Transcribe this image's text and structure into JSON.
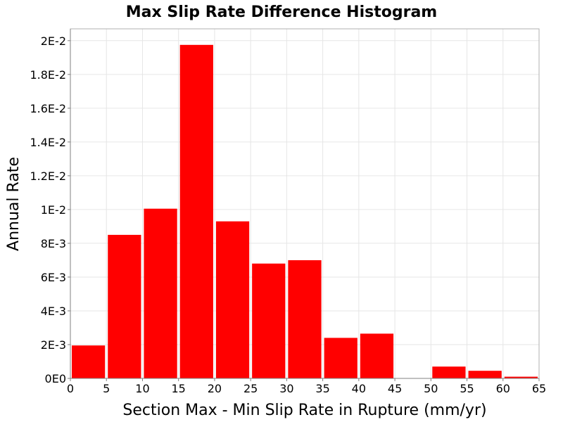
{
  "chart_data": {
    "type": "bar",
    "title": "Max Slip Rate Difference Histogram",
    "xlabel": "Section Max - Min Slip Rate in Rupture (mm/yr)",
    "ylabel": "Annual Rate",
    "bin_width": 5,
    "xlim": [
      0,
      65
    ],
    "ylim": [
      0,
      0.0207
    ],
    "x_ticks": [
      0,
      5,
      10,
      15,
      20,
      25,
      30,
      35,
      40,
      45,
      50,
      55,
      60,
      65
    ],
    "x_tick_labels": [
      "0",
      "5",
      "10",
      "15",
      "20",
      "25",
      "30",
      "35",
      "40",
      "45",
      "50",
      "55",
      "60",
      "65"
    ],
    "y_ticks": [
      0,
      0.002,
      0.004,
      0.006,
      0.008,
      0.01,
      0.012,
      0.014,
      0.016,
      0.018,
      0.02
    ],
    "y_tick_labels": [
      "0E0",
      "2E-3",
      "4E-3",
      "6E-3",
      "8E-3",
      "1E-2",
      "1.2E-2",
      "1.4E-2",
      "1.6E-2",
      "1.8E-2",
      "2E-2"
    ],
    "bins": [
      {
        "x_start": 0,
        "x_end": 5,
        "value": 0.00195
      },
      {
        "x_start": 5,
        "x_end": 10,
        "value": 0.0085
      },
      {
        "x_start": 10,
        "x_end": 15,
        "value": 0.01005
      },
      {
        "x_start": 15,
        "x_end": 20,
        "value": 0.01975
      },
      {
        "x_start": 20,
        "x_end": 25,
        "value": 0.0093
      },
      {
        "x_start": 25,
        "x_end": 30,
        "value": 0.0068
      },
      {
        "x_start": 30,
        "x_end": 35,
        "value": 0.007
      },
      {
        "x_start": 35,
        "x_end": 40,
        "value": 0.0024
      },
      {
        "x_start": 40,
        "x_end": 45,
        "value": 0.00265
      },
      {
        "x_start": 45,
        "x_end": 50,
        "value": 0
      },
      {
        "x_start": 50,
        "x_end": 55,
        "value": 0.0007
      },
      {
        "x_start": 55,
        "x_end": 60,
        "value": 0.00045
      },
      {
        "x_start": 60,
        "x_end": 65,
        "value": 0.0001
      }
    ],
    "grid": true,
    "legend": "none",
    "bar_color": "#ff0000"
  }
}
